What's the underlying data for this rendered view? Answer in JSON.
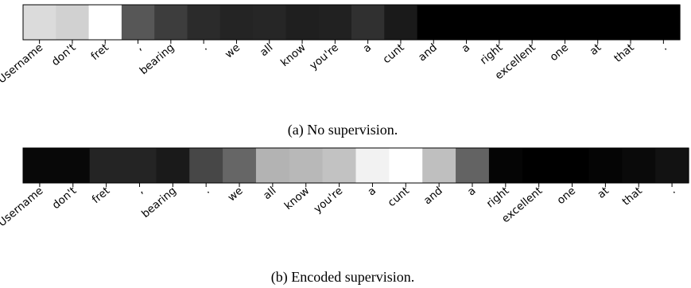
{
  "chart_data": [
    {
      "type": "heatmap",
      "caption": "(a) No supervision.",
      "categories": [
        "+Username",
        "don't",
        "fret",
        ",",
        "bearing",
        ".",
        "we",
        "all",
        "know",
        "you're",
        "a",
        "cunt",
        "and",
        "a",
        "right",
        "excellent",
        "one",
        "at",
        "that",
        "."
      ],
      "tokens": [
        {
          "value": 0.86
        },
        {
          "value": 0.82
        },
        {
          "value": 1.0
        },
        {
          "value": 0.34
        },
        {
          "value": 0.24
        },
        {
          "value": 0.17
        },
        {
          "value": 0.14
        },
        {
          "value": 0.15
        },
        {
          "value": 0.12
        },
        {
          "value": 0.13
        },
        {
          "value": 0.19
        },
        {
          "value": 0.1
        },
        {
          "value": 0.0
        },
        {
          "value": 0.0
        },
        {
          "value": 0.0
        },
        {
          "value": 0.0
        },
        {
          "value": 0.0
        },
        {
          "value": 0.0
        },
        {
          "value": 0.0
        },
        {
          "value": 0.0
        }
      ],
      "colormap": "grayscale (black = 0, white = 1)"
    },
    {
      "type": "heatmap",
      "caption": "(b) Encoded supervision.",
      "categories": [
        "+Username",
        "don't",
        "fret",
        ",",
        "bearing",
        ".",
        "we",
        "all",
        "know",
        "you're",
        "a",
        "cunt",
        "and",
        "a",
        "right",
        "excellent",
        "one",
        "at",
        "that",
        "."
      ],
      "tokens": [
        {
          "value": 0.03
        },
        {
          "value": 0.03
        },
        {
          "value": 0.14
        },
        {
          "value": 0.14
        },
        {
          "value": 0.1
        },
        {
          "value": 0.28
        },
        {
          "value": 0.4
        },
        {
          "value": 0.7
        },
        {
          "value": 0.72
        },
        {
          "value": 0.76
        },
        {
          "value": 0.95
        },
        {
          "value": 1.0
        },
        {
          "value": 0.75
        },
        {
          "value": 0.39
        },
        {
          "value": 0.02
        },
        {
          "value": 0.0
        },
        {
          "value": 0.0
        },
        {
          "value": 0.02
        },
        {
          "value": 0.04
        },
        {
          "value": 0.07
        }
      ],
      "colormap": "grayscale (black = 0, white = 1)"
    }
  ]
}
